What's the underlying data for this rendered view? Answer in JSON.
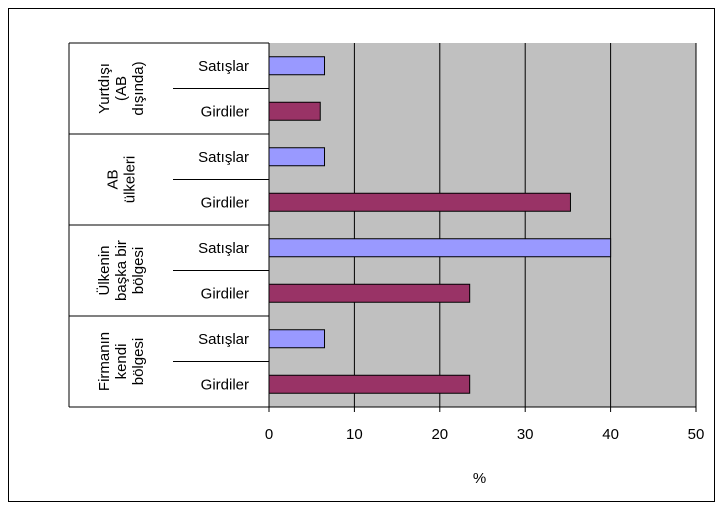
{
  "chart_data": {
    "type": "bar",
    "orientation": "horizontal",
    "xlabel": "%",
    "xlim": [
      0,
      50
    ],
    "xticks": [
      0,
      10,
      20,
      30,
      40,
      50
    ],
    "grid": true,
    "plot_background": "#c0c0c0",
    "groups": [
      {
        "lines": [
          "Yurtdışı",
          "(AB",
          "dışında)"
        ],
        "bars": [
          {
            "label": "Satışlar",
            "value": 6.5,
            "color": "#9999ff"
          },
          {
            "label": "Girdiler",
            "value": 6.0,
            "color": "#993366"
          }
        ]
      },
      {
        "lines": [
          "AB",
          "ülkeleri"
        ],
        "bars": [
          {
            "label": "Satışlar",
            "value": 6.5,
            "color": "#9999ff"
          },
          {
            "label": "Girdiler",
            "value": 35.3,
            "color": "#993366"
          }
        ]
      },
      {
        "lines": [
          "Ülkenin",
          "başka bir",
          "bölgesi"
        ],
        "bars": [
          {
            "label": "Satışlar",
            "value": 40,
            "color": "#9999ff"
          },
          {
            "label": "Girdiler",
            "value": 23.5,
            "color": "#993366"
          }
        ]
      },
      {
        "lines": [
          "Firmanın",
          "kendi",
          "bölgesi"
        ],
        "bars": [
          {
            "label": "Satışlar",
            "value": 6.5,
            "color": "#9999ff"
          },
          {
            "label": "Girdiler",
            "value": 23.5,
            "color": "#993366"
          }
        ]
      }
    ]
  }
}
